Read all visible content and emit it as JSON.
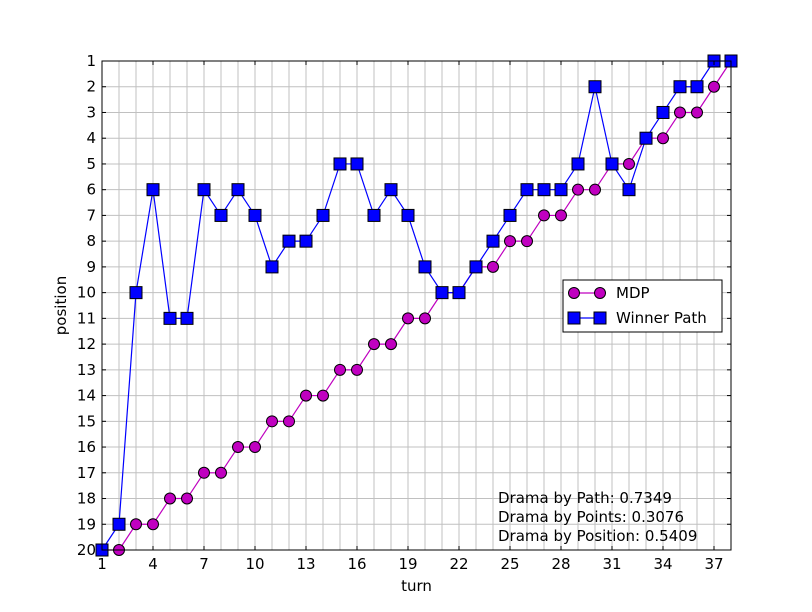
{
  "chart_data": {
    "type": "line",
    "xlabel": "turn",
    "ylabel": "position",
    "xlim": [
      1,
      38
    ],
    "ylim": [
      1,
      20
    ],
    "y_inverted": true,
    "grid": true,
    "x_ticks": [
      1,
      4,
      7,
      10,
      13,
      16,
      19,
      22,
      25,
      28,
      31,
      34,
      37
    ],
    "y_ticks": [
      1,
      2,
      3,
      4,
      5,
      6,
      7,
      8,
      9,
      10,
      11,
      12,
      13,
      14,
      15,
      16,
      17,
      18,
      19,
      20
    ],
    "legend_position": "right",
    "x": [
      1,
      2,
      3,
      4,
      5,
      6,
      7,
      8,
      9,
      10,
      11,
      12,
      13,
      14,
      15,
      16,
      17,
      18,
      19,
      20,
      21,
      22,
      23,
      24,
      25,
      26,
      27,
      28,
      29,
      30,
      31,
      32,
      33,
      34,
      35,
      36,
      37,
      38
    ],
    "series": [
      {
        "name": "MDP",
        "marker": "circle",
        "color": "#bf00bf",
        "fill": "#c000c0",
        "values": [
          20,
          20,
          19,
          19,
          18,
          18,
          17,
          17,
          16,
          16,
          15,
          15,
          14,
          14,
          13,
          13,
          12,
          12,
          11,
          11,
          10,
          10,
          9,
          9,
          8,
          8,
          7,
          7,
          6,
          6,
          5,
          5,
          4,
          4,
          3,
          3,
          2,
          1
        ]
      },
      {
        "name": "Winner Path",
        "marker": "square",
        "color": "#0000ff",
        "fill": "#0000ff",
        "values": [
          20,
          19,
          10,
          6,
          11,
          11,
          6,
          7,
          6,
          7,
          9,
          8,
          8,
          7,
          5,
          5,
          7,
          6,
          7,
          9,
          10,
          10,
          9,
          8,
          7,
          6,
          6,
          6,
          5,
          2,
          5,
          6,
          4,
          3,
          2,
          2,
          1,
          1
        ]
      }
    ],
    "annotations": [
      "Drama by Path: 0.7349",
      "Drama by Points: 0.3076",
      "Drama by Position: 0.5409"
    ]
  }
}
